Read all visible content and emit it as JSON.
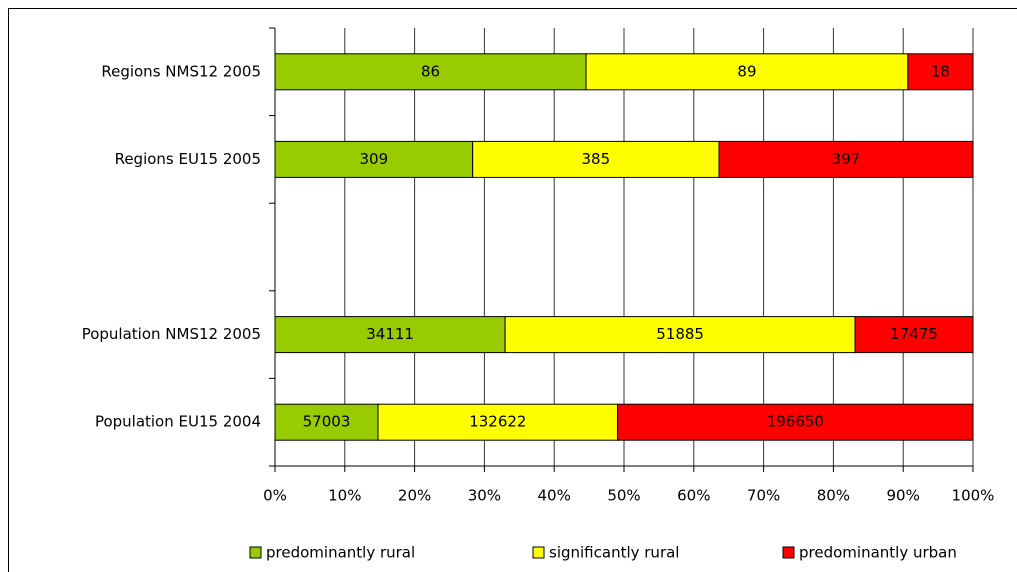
{
  "chart_data": {
    "type": "bar",
    "orientation": "horizontal",
    "stacked": "percent",
    "categories": [
      "Regions NMS12 2005",
      "Regions EU15 2005",
      null,
      "Population NMS12 2005",
      "Population EU15 2004"
    ],
    "series": [
      {
        "name": "predominantly rural",
        "color": "#99cc00",
        "values": [
          86,
          309,
          null,
          34111,
          57003
        ]
      },
      {
        "name": "significantly rural",
        "color": "#ffff00",
        "values": [
          89,
          385,
          null,
          51885,
          132622
        ]
      },
      {
        "name": "predominantly urban",
        "color": "#ff0000",
        "values": [
          18,
          397,
          null,
          17475,
          196650
        ]
      }
    ],
    "xlim": [
      0,
      100
    ],
    "xticks": [
      {
        "value": 0,
        "label": "0%"
      },
      {
        "value": 10,
        "label": "10%"
      },
      {
        "value": 20,
        "label": "20%"
      },
      {
        "value": 30,
        "label": "30%"
      },
      {
        "value": 40,
        "label": "40%"
      },
      {
        "value": 50,
        "label": "50%"
      },
      {
        "value": 60,
        "label": "60%"
      },
      {
        "value": 70,
        "label": "70%"
      },
      {
        "value": 80,
        "label": "80%"
      },
      {
        "value": 90,
        "label": "90%"
      },
      {
        "value": 100,
        "label": "100%"
      }
    ],
    "grid": true,
    "legend": "bottom"
  }
}
